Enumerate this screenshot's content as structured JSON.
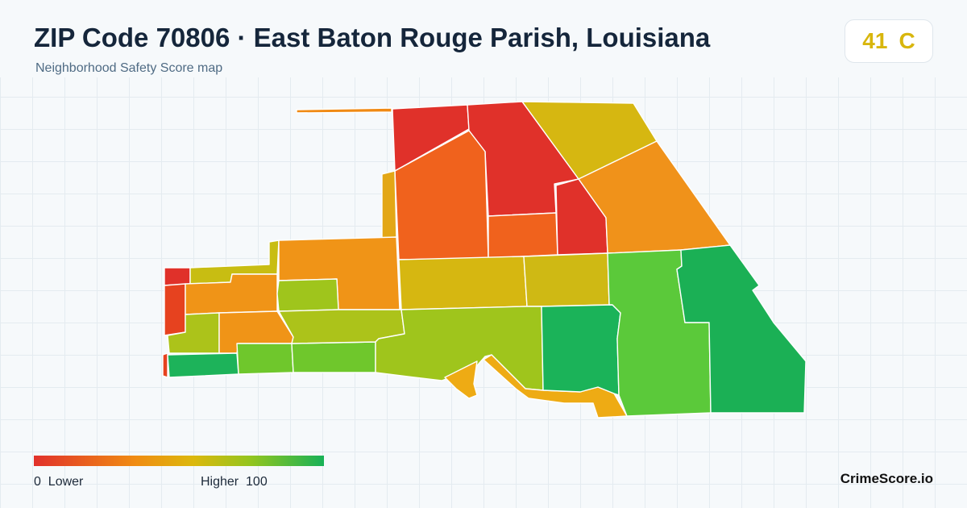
{
  "header": {
    "title": "ZIP Code 70806 · East Baton Rouge Parish, Louisiana",
    "subtitle": "Neighborhood Safety Score map"
  },
  "score": {
    "value": "41",
    "grade": "C",
    "color": "#d8b60d"
  },
  "legend": {
    "low_value": "0",
    "low_label": "Lower",
    "high_label": "Higher",
    "high_value": "100",
    "colors": [
      "#e1312b",
      "#f08c13",
      "#dcb80d",
      "#92c51f",
      "#18b157"
    ]
  },
  "brand": "CrimeScore.io",
  "map_regions": [
    {
      "name": "north-central-west",
      "score": 8,
      "color": "#e0312a"
    },
    {
      "name": "north-central-east",
      "score": 6,
      "color": "#e0312a"
    },
    {
      "name": "northeast-top",
      "score": 45,
      "color": "#d6b711"
    },
    {
      "name": "north-west-mid",
      "score": 22,
      "color": "#f0621d"
    },
    {
      "name": "north-center-small",
      "score": 22,
      "color": "#f0621d"
    },
    {
      "name": "north-east-narrow",
      "score": 7,
      "color": "#e0312a"
    },
    {
      "name": "northeast-large",
      "score": 33,
      "color": "#f0921a"
    },
    {
      "name": "thin-strip-west",
      "score": 40,
      "color": "#e3a716"
    },
    {
      "name": "top-spike",
      "score": 30,
      "color": "#f08a14"
    },
    {
      "name": "west-far-red-top",
      "score": 8,
      "color": "#e0312a"
    },
    {
      "name": "west-far-red-mid",
      "score": 14,
      "color": "#e6421f"
    },
    {
      "name": "west-far-tip",
      "score": 14,
      "color": "#e6421f"
    },
    {
      "name": "west-strip-top",
      "score": 48,
      "color": "#c8bd12"
    },
    {
      "name": "west-orange-a",
      "score": 33,
      "color": "#f09417"
    },
    {
      "name": "west-mid-olive",
      "score": 55,
      "color": "#acc31a"
    },
    {
      "name": "west-orange-b",
      "score": 33,
      "color": "#f09417"
    },
    {
      "name": "west-green-bottom",
      "score": 88,
      "color": "#1db35a"
    },
    {
      "name": "west-light-green-a",
      "score": 70,
      "color": "#6fc72c"
    },
    {
      "name": "west-light-green-b",
      "score": 70,
      "color": "#6fc72c"
    },
    {
      "name": "central-west-orange",
      "score": 33,
      "color": "#f09417"
    },
    {
      "name": "central-west-green",
      "score": 60,
      "color": "#9fc51c"
    },
    {
      "name": "central-west-olive-south",
      "score": 55,
      "color": "#acc31a"
    },
    {
      "name": "central-yellow-a",
      "score": 45,
      "color": "#d6b711"
    },
    {
      "name": "central-yellow-b",
      "score": 47,
      "color": "#cfb914"
    },
    {
      "name": "south-central-olive",
      "score": 60,
      "color": "#9fc51c"
    },
    {
      "name": "south-orange-strip",
      "score": 40,
      "color": "#eeab14"
    },
    {
      "name": "south-orange-small",
      "score": 40,
      "color": "#eeab14"
    },
    {
      "name": "south-green",
      "score": 86,
      "color": "#1bb359"
    },
    {
      "name": "east-light-green",
      "score": 72,
      "color": "#5bc93a"
    },
    {
      "name": "east-green",
      "score": 88,
      "color": "#1bb055"
    }
  ]
}
